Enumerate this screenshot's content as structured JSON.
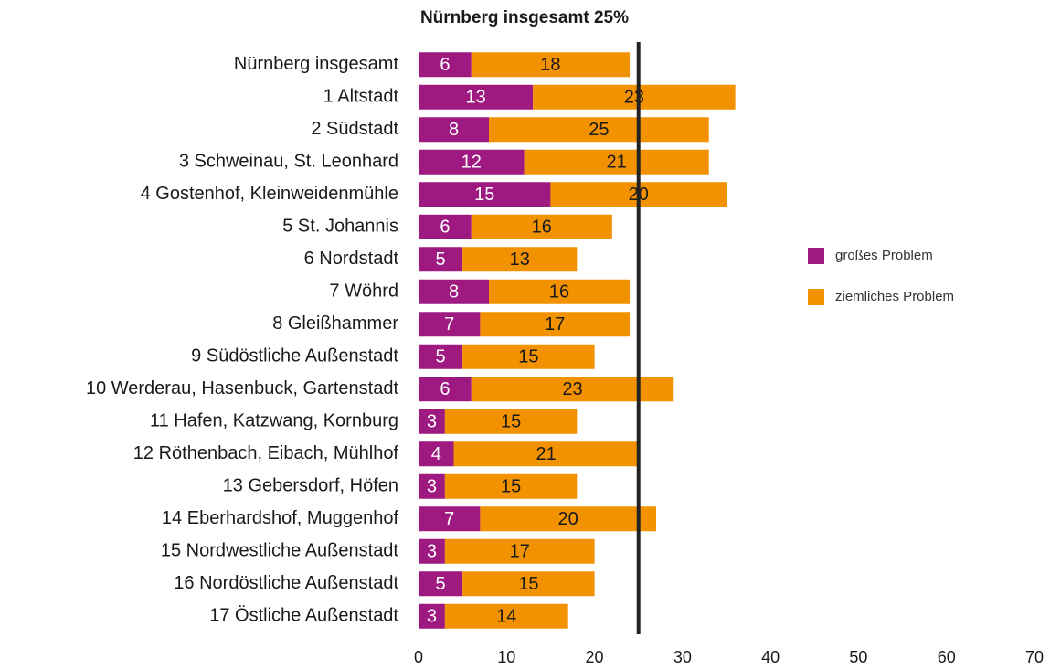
{
  "chart_data": {
    "type": "stacked_bar_horizontal",
    "title": "Nürnberg insgesamt 25%",
    "categories": [
      "Nürnberg insgesamt",
      "1 Altstadt",
      "2 Südstadt",
      "3 Schweinau, St. Leonhard",
      "4 Gostenhof, Kleinweidenmühle",
      "5 St. Johannis",
      "6 Nordstadt",
      "7 Wöhrd",
      "8 Gleißhammer",
      "9 Südöstliche Außenstadt",
      "10 Werderau, Hasenbuck, Gartenstadt",
      "11 Hafen, Katzwang, Kornburg",
      "12 Röthenbach, Eibach, Mühlhof",
      "13 Gebersdorf, Höfen",
      "14 Eberhardshof, Muggenhof",
      "15 Nordwestliche Außenstadt",
      "16 Nordöstliche Außenstadt",
      "17 Östliche Außenstadt"
    ],
    "series": [
      {
        "name": "großes Problem",
        "color": "#9e1a80",
        "values": [
          6,
          13,
          8,
          12,
          15,
          6,
          5,
          8,
          7,
          5,
          6,
          3,
          4,
          3,
          7,
          3,
          5,
          3
        ]
      },
      {
        "name": "ziemliches Problem",
        "color": "#f39200",
        "values": [
          18,
          23,
          25,
          21,
          20,
          16,
          13,
          16,
          17,
          15,
          23,
          15,
          21,
          15,
          20,
          17,
          15,
          14
        ]
      }
    ],
    "xlim": [
      0,
      70
    ],
    "xticks": [
      0,
      10,
      20,
      30,
      40,
      50,
      60,
      70
    ],
    "reference_line": 25,
    "legend": "right",
    "grid": false
  }
}
